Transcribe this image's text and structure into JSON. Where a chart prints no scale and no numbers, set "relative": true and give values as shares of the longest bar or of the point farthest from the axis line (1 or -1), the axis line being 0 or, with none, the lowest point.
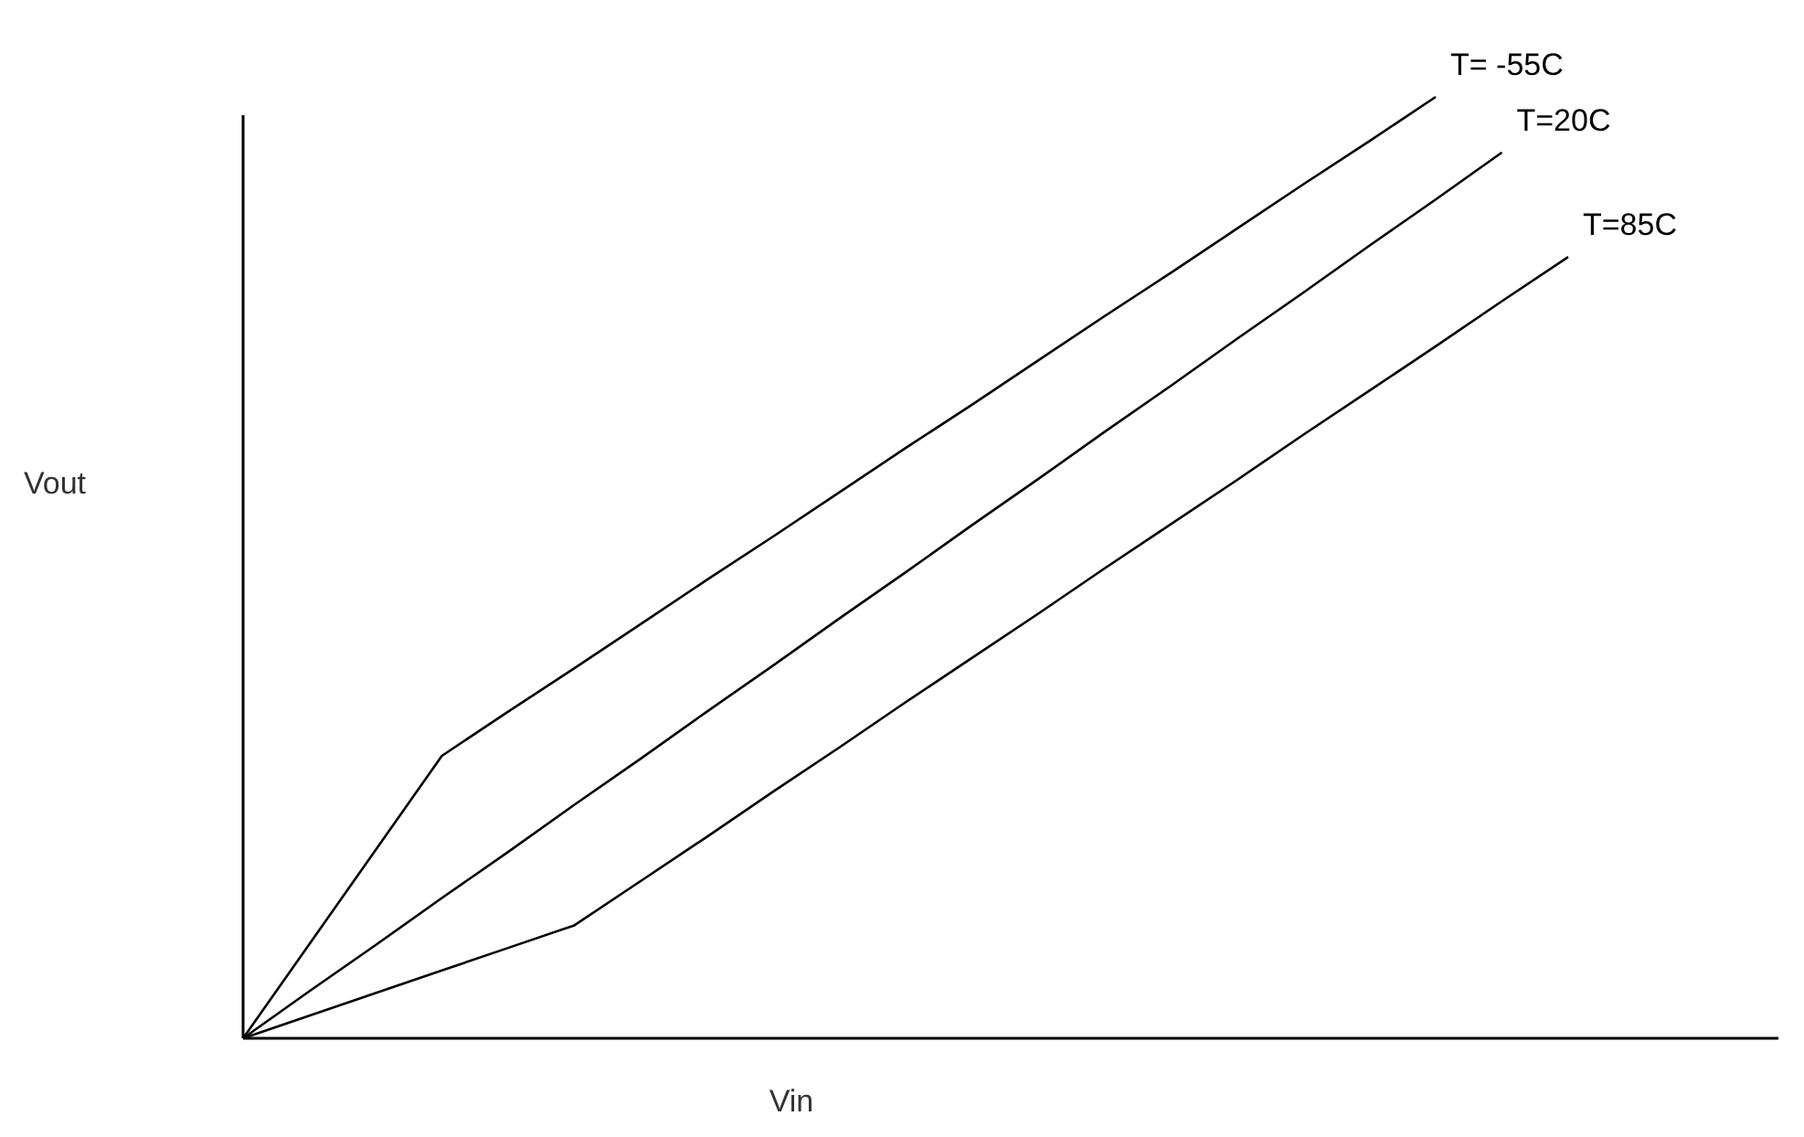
{
  "chart_data": {
    "type": "line",
    "relative": true,
    "xlabel": "Vin",
    "ylabel": "Vout",
    "marker": "none",
    "line_style": "solid",
    "categories": [
      null,
      null,
      null,
      null,
      null,
      null,
      null,
      null,
      null,
      null,
      null,
      null,
      null,
      null,
      null,
      null,
      null,
      null,
      null,
      null,
      null
    ],
    "series": [
      {
        "name": "T= -55C",
        "color": "#000000",
        "values": [
          0,
          0.1,
          0.2,
          0.3,
          0.347,
          0.393,
          0.44,
          0.487,
          0.533,
          0.58,
          0.627,
          0.673,
          0.72,
          0.767,
          0.813,
          0.86,
          0.907,
          0.953,
          1,
          null,
          null
        ]
      },
      {
        "name": "T=20C",
        "color": "#000000",
        "values": [
          0,
          0.05,
          0.099,
          0.149,
          0.198,
          0.248,
          0.297,
          0.347,
          0.396,
          0.446,
          0.495,
          0.545,
          0.594,
          0.644,
          0.693,
          0.743,
          0.792,
          0.842,
          0.891,
          0.941,
          null
        ]
      },
      {
        "name": "T=85C",
        "color": "#000000",
        "values": [
          0,
          0.024,
          0.048,
          0.072,
          0.096,
          0.12,
          0.167,
          0.214,
          0.262,
          0.309,
          0.357,
          0.404,
          0.451,
          0.499,
          0.546,
          0.593,
          0.641,
          0.688,
          0.735,
          0.783,
          0.83
        ]
      }
    ]
  }
}
